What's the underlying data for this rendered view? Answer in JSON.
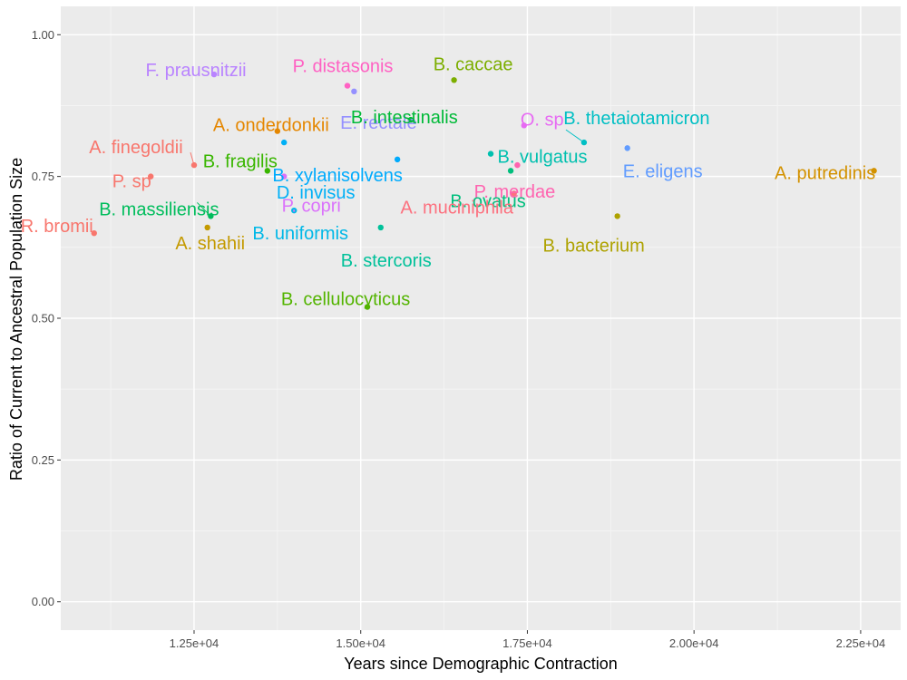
{
  "chart_data": {
    "type": "scatter",
    "xlabel": "Years since Demographic Contraction",
    "ylabel": "Ratio of Current to Ancestral Population Size",
    "xlim": [
      10500,
      23100
    ],
    "ylim": [
      -0.05,
      1.05
    ],
    "x_ticks": [
      12500,
      15000,
      17500,
      20000,
      22500
    ],
    "x_tick_labels": [
      "1.25e+04",
      "1.50e+04",
      "1.75e+04",
      "2.00e+04",
      "2.25e+04"
    ],
    "y_ticks": [
      0,
      0.25,
      0.5,
      0.75,
      1.0
    ],
    "y_tick_labels": [
      "0.00",
      "0.25",
      "0.50",
      "0.75",
      "1.00"
    ],
    "grid": true,
    "points": [
      {
        "label": "F. prausnitzii",
        "x": 12800,
        "y": 0.93,
        "color": "#B983FF"
      },
      {
        "label": "P. distasonis",
        "x": 14800,
        "y": 0.91,
        "color": "#FF61C3"
      },
      {
        "label": "E. rectale",
        "x": 14900,
        "y": 0.9,
        "color": "#9590FF"
      },
      {
        "label": "B. caccae",
        "x": 16400,
        "y": 0.92,
        "color": "#7CAE00"
      },
      {
        "label": "A. onderdonkii",
        "x": 13750,
        "y": 0.83,
        "color": "#E58700"
      },
      {
        "label": "B. intestinalis",
        "x": 15750,
        "y": 0.85,
        "color": "#00BA38"
      },
      {
        "label": "O. sp",
        "x": 17450,
        "y": 0.84,
        "color": "#E76BF3"
      },
      {
        "label": "B. thetaiotamicron",
        "x": 18350,
        "y": 0.81,
        "color": "#00BFC4"
      },
      {
        "label": "A. finegoldii",
        "x": 12500,
        "y": 0.77,
        "color": "#F8766D"
      },
      {
        "label": "D. invisus",
        "x": 13850,
        "y": 0.81,
        "color": "#00B0F6"
      },
      {
        "label": "B. vulgatus",
        "x": 16950,
        "y": 0.79,
        "color": "#00C0AF"
      },
      {
        "label": "E. eligens",
        "x": 19000,
        "y": 0.8,
        "color": "#619CFF"
      },
      {
        "label": "P. sp",
        "x": 11850,
        "y": 0.75,
        "color": "#F8766D"
      },
      {
        "label": "B. fragilis",
        "x": 13600,
        "y": 0.76,
        "color": "#39B600"
      },
      {
        "label": "B. xylanisolvens",
        "x": 15550,
        "y": 0.78,
        "color": "#00ABFD"
      },
      {
        "label": "P. merdae",
        "x": 17350,
        "y": 0.77,
        "color": "#FF64B0"
      },
      {
        "label": "A. putredinis",
        "x": 22700,
        "y": 0.76,
        "color": "#D39200"
      },
      {
        "label": "B. ovatus",
        "x": 17250,
        "y": 0.76,
        "color": "#00BF7D"
      },
      {
        "label": "A. muciniphila",
        "x": 17300,
        "y": 0.72,
        "color": "#FC717F"
      },
      {
        "label": "P. copri",
        "x": 13850,
        "y": 0.75,
        "color": "#DB72FB"
      },
      {
        "label": "B. massiliensis",
        "x": 12750,
        "y": 0.68,
        "color": "#00BD5C"
      },
      {
        "label": "B. uniformis",
        "x": 14000,
        "y": 0.69,
        "color": "#00B8E7"
      },
      {
        "label": "R. bromii",
        "x": 11000,
        "y": 0.65,
        "color": "#F8766D"
      },
      {
        "label": "A. shahii",
        "x": 12700,
        "y": 0.66,
        "color": "#C49A00"
      },
      {
        "label": "B. stercoris",
        "x": 15300,
        "y": 0.66,
        "color": "#00C19A"
      },
      {
        "label": "B. bacterium",
        "x": 18850,
        "y": 0.68,
        "color": "#AEA200"
      },
      {
        "label": "B. cellulocyticus",
        "x": 15100,
        "y": 0.52,
        "color": "#53B400"
      }
    ]
  }
}
